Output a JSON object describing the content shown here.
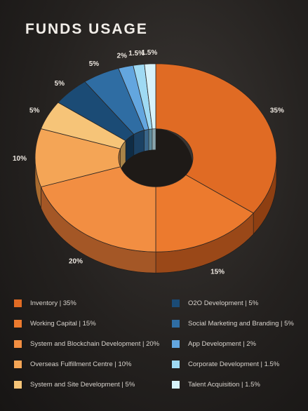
{
  "title": "FUNDS USAGE",
  "chart_data": {
    "type": "pie",
    "style": "3d-donut",
    "slices": [
      {
        "label": "Inventory | 35%",
        "value": 35,
        "display": "35%",
        "color": "#e06b24",
        "side": "#8e3f12"
      },
      {
        "label": "Working Capital | 15%",
        "value": 15,
        "display": "15%",
        "color": "#ec7a2e",
        "side": "#9a4818"
      },
      {
        "label": "System and Blockchain Development | 20%",
        "value": 20,
        "display": "20%",
        "color": "#f28e42",
        "side": "#a45726"
      },
      {
        "label": "Overseas Fulfillment Centre | 10%",
        "value": 10,
        "display": "10%",
        "color": "#f4a556",
        "side": "#a86a2e"
      },
      {
        "label": "System and Site Development | 5%",
        "value": 5,
        "display": "5%",
        "color": "#f6c478",
        "side": "#a98448"
      },
      {
        "label": "O2O Development | 5%",
        "value": 5,
        "display": "5%",
        "color": "#1b4b75",
        "side": "#0f2c45"
      },
      {
        "label": "Social Marketing and Branding | 5%",
        "value": 5,
        "display": "5%",
        "color": "#2f6da3",
        "side": "#1b4163"
      },
      {
        "label": "App Development | 2%",
        "value": 2,
        "display": "2%",
        "color": "#63a6df",
        "side": "#3a668a"
      },
      {
        "label": "Corporate Development | 1.5%",
        "value": 1.5,
        "display": "1.5%",
        "color": "#9fdaf3",
        "side": "#5f8a9b"
      },
      {
        "label": "Talent Acquisition | 1.5%",
        "value": 1.5,
        "display": "1.5%",
        "color": "#d7f3fb",
        "side": "#8aa5ad"
      }
    ],
    "legend_position": "bottom"
  }
}
